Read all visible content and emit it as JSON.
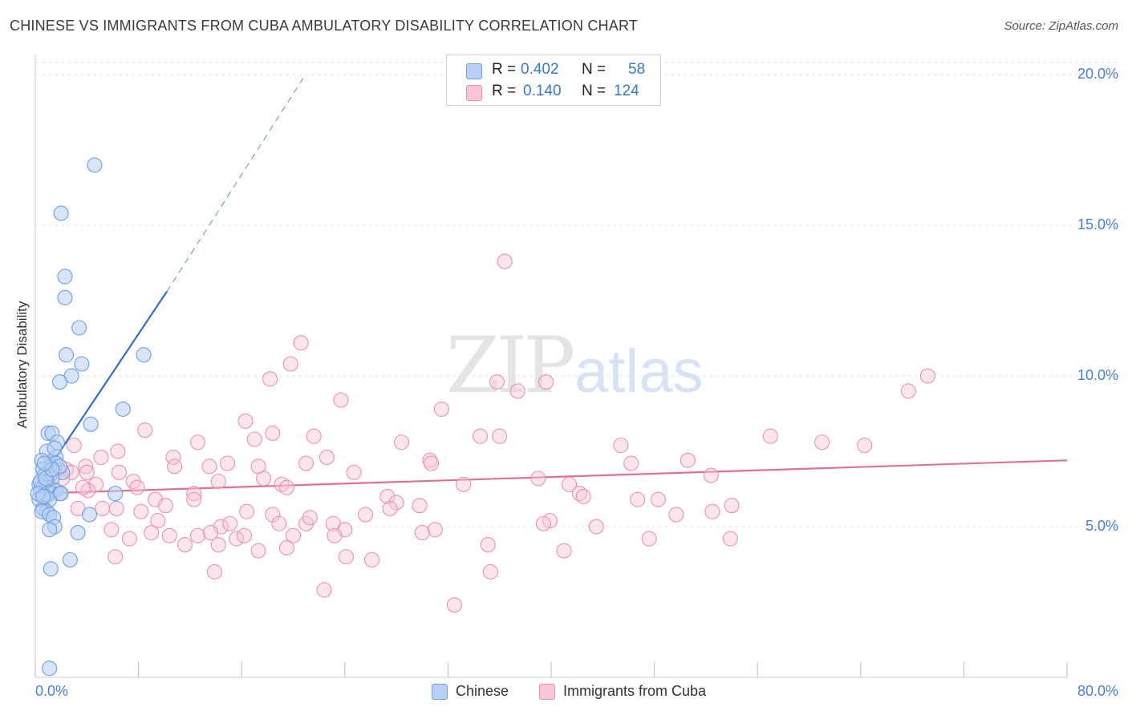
{
  "header": {
    "title": "CHINESE VS IMMIGRANTS FROM CUBA AMBULATORY DISABILITY CORRELATION CHART",
    "source": "Source: ZipAtlas.com"
  },
  "watermark": {
    "zip": "ZIP",
    "atlas": "atlas"
  },
  "legend": {
    "rows": [
      {
        "r_label": "R =",
        "r_value": "0.402",
        "n_label": "N =",
        "n_value": "58"
      },
      {
        "r_label": "R =",
        "r_value": "0.140",
        "n_label": "N =",
        "n_value": "124"
      }
    ],
    "bottom": [
      "Chinese",
      "Immigrants from Cuba"
    ]
  },
  "colors": {
    "chinese_fill": "#b8d0f4",
    "chinese_stroke": "#6f9fdc",
    "chinese_line": "#2f72c8",
    "cuba_fill": "#f8c6d6",
    "cuba_stroke": "#e892b0",
    "cuba_line": "#e0709a",
    "grid": "#e6e6e6",
    "axis_text": "#4a7fd0"
  },
  "chart_data": {
    "type": "scatter",
    "title": "CHINESE VS IMMIGRANTS FROM CUBA AMBULATORY DISABILITY CORRELATION CHART",
    "xlabel": "",
    "ylabel": "Ambulatory Disability",
    "xlim": [
      0,
      80
    ],
    "ylim": [
      0,
      20.8
    ],
    "x_tick_labels": [
      "0.0%",
      "80.0%"
    ],
    "y_ticks": [
      5,
      10,
      15,
      20
    ],
    "y_tick_labels": [
      "5.0%",
      "10.0%",
      "15.0%",
      "20.0%"
    ],
    "legend_position": "top-center",
    "series": [
      {
        "name": "Chinese",
        "R": 0.402,
        "N": 58,
        "trend": {
          "x0": 0.2,
          "y0": 6.4,
          "x1": 10.2,
          "y1": 12.8,
          "dashed_to_x": 20.8,
          "dashed_to_y": 19.9
        },
        "points": [
          [
            4.6,
            17.0
          ],
          [
            2.0,
            15.4
          ],
          [
            2.3,
            13.3
          ],
          [
            2.3,
            12.6
          ],
          [
            3.4,
            11.6
          ],
          [
            8.4,
            10.7
          ],
          [
            2.4,
            10.7
          ],
          [
            3.6,
            10.4
          ],
          [
            2.8,
            10.0
          ],
          [
            1.9,
            9.8
          ],
          [
            6.8,
            8.9
          ],
          [
            4.3,
            8.4
          ],
          [
            1.0,
            8.1
          ],
          [
            1.3,
            8.1
          ],
          [
            1.7,
            7.8
          ],
          [
            0.9,
            7.5
          ],
          [
            1.6,
            7.3
          ],
          [
            0.5,
            7.2
          ],
          [
            1.2,
            7.0
          ],
          [
            1.6,
            7.1
          ],
          [
            0.6,
            6.9
          ],
          [
            1.4,
            6.8
          ],
          [
            2.1,
            6.8
          ],
          [
            0.7,
            6.7
          ],
          [
            1.3,
            6.6
          ],
          [
            0.9,
            6.5
          ],
          [
            0.3,
            6.4
          ],
          [
            0.5,
            6.3
          ],
          [
            1.0,
            6.3
          ],
          [
            0.4,
            6.2
          ],
          [
            1.6,
            6.2
          ],
          [
            1.2,
            6.1
          ],
          [
            0.8,
            6.0
          ],
          [
            1.9,
            6.1
          ],
          [
            6.2,
            6.1
          ],
          [
            0.3,
            5.9
          ],
          [
            1.1,
            5.9
          ],
          [
            0.6,
            5.6
          ],
          [
            0.9,
            5.5
          ],
          [
            0.5,
            5.5
          ],
          [
            1.1,
            5.4
          ],
          [
            1.4,
            5.3
          ],
          [
            4.2,
            5.4
          ],
          [
            1.5,
            5.0
          ],
          [
            1.1,
            4.9
          ],
          [
            3.3,
            4.8
          ],
          [
            2.7,
            3.9
          ],
          [
            1.2,
            3.6
          ],
          [
            1.1,
            0.3
          ],
          [
            0.4,
            6.5
          ],
          [
            0.8,
            6.6
          ],
          [
            0.2,
            6.1
          ],
          [
            1.9,
            7.0
          ],
          [
            0.6,
            6.0
          ],
          [
            1.3,
            6.9
          ],
          [
            0.7,
            7.1
          ],
          [
            2.0,
            6.1
          ],
          [
            1.5,
            7.6
          ]
        ]
      },
      {
        "name": "Immigrants from Cuba",
        "R": 0.14,
        "N": 124,
        "trend": {
          "x0": 0.2,
          "y0": 6.1,
          "x1": 80.0,
          "y1": 7.2
        },
        "points": [
          [
            36.4,
            13.8
          ],
          [
            20.6,
            11.1
          ],
          [
            19.8,
            10.4
          ],
          [
            18.2,
            9.9
          ],
          [
            35.8,
            9.8
          ],
          [
            39.6,
            9.8
          ],
          [
            37.4,
            9.5
          ],
          [
            23.7,
            9.2
          ],
          [
            31.5,
            8.9
          ],
          [
            67.7,
            9.5
          ],
          [
            69.2,
            10.0
          ],
          [
            16.3,
            8.5
          ],
          [
            8.5,
            8.2
          ],
          [
            18.4,
            8.1
          ],
          [
            21.6,
            8.0
          ],
          [
            34.5,
            8.0
          ],
          [
            36.0,
            8.0
          ],
          [
            28.4,
            7.8
          ],
          [
            12.6,
            7.8
          ],
          [
            17.0,
            7.9
          ],
          [
            57.0,
            8.0
          ],
          [
            61.0,
            7.8
          ],
          [
            64.3,
            7.7
          ],
          [
            45.4,
            7.7
          ],
          [
            3.0,
            7.7
          ],
          [
            6.4,
            7.5
          ],
          [
            5.1,
            7.3
          ],
          [
            10.7,
            7.3
          ],
          [
            22.6,
            7.3
          ],
          [
            30.6,
            7.2
          ],
          [
            30.7,
            7.1
          ],
          [
            14.9,
            7.1
          ],
          [
            21.0,
            7.1
          ],
          [
            46.2,
            7.1
          ],
          [
            50.6,
            7.2
          ],
          [
            3.9,
            7.0
          ],
          [
            10.8,
            7.0
          ],
          [
            13.5,
            7.0
          ],
          [
            17.3,
            7.0
          ],
          [
            2.4,
            6.9
          ],
          [
            4.0,
            6.8
          ],
          [
            1.8,
            6.9
          ],
          [
            6.5,
            6.8
          ],
          [
            24.7,
            6.8
          ],
          [
            2.8,
            6.8
          ],
          [
            7.6,
            6.5
          ],
          [
            14.2,
            6.5
          ],
          [
            17.7,
            6.6
          ],
          [
            39.0,
            6.6
          ],
          [
            52.4,
            6.7
          ],
          [
            19.1,
            6.4
          ],
          [
            19.5,
            6.3
          ],
          [
            33.2,
            6.4
          ],
          [
            41.4,
            6.4
          ],
          [
            7.9,
            6.3
          ],
          [
            4.7,
            6.4
          ],
          [
            4.1,
            6.2
          ],
          [
            42.2,
            6.1
          ],
          [
            12.3,
            6.1
          ],
          [
            1.5,
            6.2
          ],
          [
            3.7,
            6.3
          ],
          [
            42.5,
            6.0
          ],
          [
            12.3,
            5.9
          ],
          [
            9.3,
            5.9
          ],
          [
            27.3,
            6.0
          ],
          [
            28.0,
            5.8
          ],
          [
            29.8,
            5.7
          ],
          [
            27.5,
            5.6
          ],
          [
            46.7,
            5.9
          ],
          [
            48.3,
            5.9
          ],
          [
            10.1,
            5.7
          ],
          [
            3.3,
            5.6
          ],
          [
            5.2,
            5.6
          ],
          [
            6.3,
            5.6
          ],
          [
            8.2,
            5.5
          ],
          [
            16.4,
            5.5
          ],
          [
            18.4,
            5.4
          ],
          [
            25.6,
            5.4
          ],
          [
            39.9,
            5.2
          ],
          [
            39.4,
            5.1
          ],
          [
            49.7,
            5.4
          ],
          [
            52.5,
            5.5
          ],
          [
            54.0,
            5.7
          ],
          [
            9.5,
            5.2
          ],
          [
            14.4,
            5.0
          ],
          [
            15.1,
            5.1
          ],
          [
            18.9,
            5.1
          ],
          [
            21.0,
            5.1
          ],
          [
            23.1,
            5.1
          ],
          [
            24.0,
            4.9
          ],
          [
            31.0,
            4.9
          ],
          [
            30.0,
            4.8
          ],
          [
            43.5,
            5.0
          ],
          [
            5.9,
            4.9
          ],
          [
            9.0,
            4.8
          ],
          [
            10.4,
            4.7
          ],
          [
            12.6,
            4.7
          ],
          [
            13.6,
            4.8
          ],
          [
            15.6,
            4.6
          ],
          [
            16.2,
            4.7
          ],
          [
            20.0,
            4.7
          ],
          [
            23.2,
            4.7
          ],
          [
            47.6,
            4.6
          ],
          [
            53.9,
            4.6
          ],
          [
            7.3,
            4.6
          ],
          [
            14.2,
            4.4
          ],
          [
            17.3,
            4.2
          ],
          [
            19.5,
            4.3
          ],
          [
            24.1,
            4.0
          ],
          [
            26.1,
            3.9
          ],
          [
            35.1,
            4.4
          ],
          [
            41.0,
            4.2
          ],
          [
            6.2,
            4.0
          ],
          [
            13.9,
            3.5
          ],
          [
            35.3,
            3.5
          ],
          [
            22.4,
            2.9
          ],
          [
            32.5,
            2.4
          ],
          [
            21.3,
            5.3
          ],
          [
            11.6,
            4.4
          ],
          [
            2.1,
            6.6
          ],
          [
            1.2,
            7.1
          ],
          [
            0.8,
            6.5
          ]
        ]
      }
    ]
  }
}
